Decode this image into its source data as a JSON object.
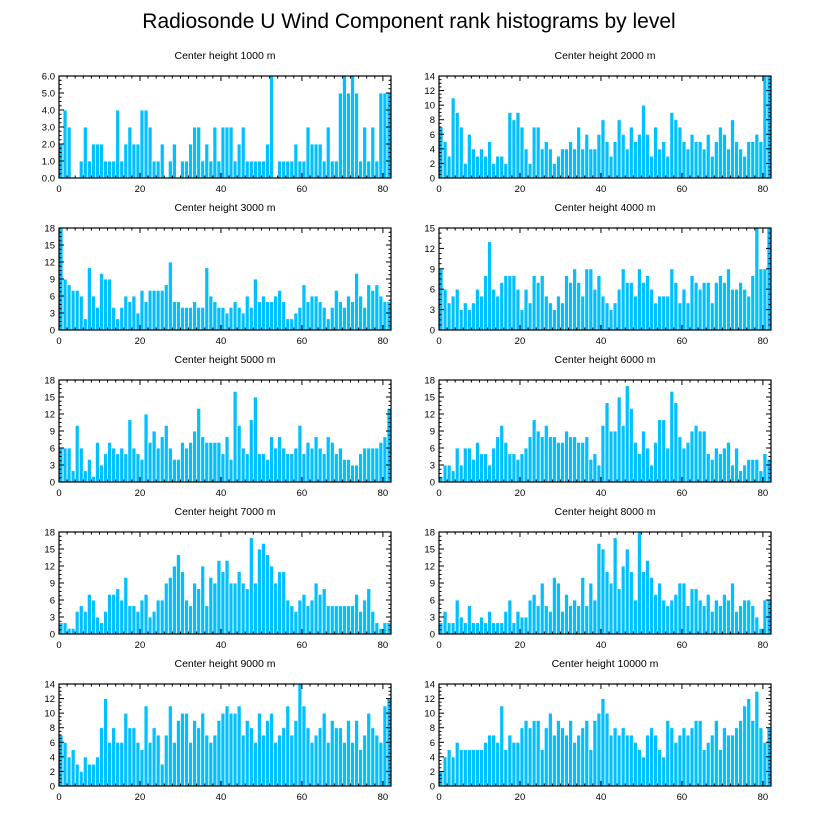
{
  "title": "Radiosonde U Wind Component rank histograms by level",
  "colors": {
    "bar": "#00c0ff",
    "bar_edge": "#ffffff",
    "axis": "#000000"
  },
  "chart_data": [
    {
      "type": "bar",
      "title": "Center height 1000 m",
      "xlim": [
        0,
        82
      ],
      "ylim": [
        0,
        6
      ],
      "xticks": [
        0,
        20,
        40,
        60,
        80
      ],
      "yticks": [
        0,
        1,
        2,
        3,
        4,
        5,
        6
      ],
      "ytick_labels": [
        "0.0",
        "1.0",
        "2.0",
        "3.0",
        "4.0",
        "5.0",
        "6.0"
      ],
      "values": [
        2,
        4,
        3,
        0,
        0,
        1,
        3,
        1,
        2,
        2,
        2,
        1,
        1,
        1,
        4,
        1,
        2,
        3,
        2,
        2,
        4,
        4,
        3,
        1,
        1,
        2,
        0,
        1,
        2,
        0,
        1,
        1,
        2,
        3,
        3,
        1,
        2,
        1,
        3,
        1,
        3,
        3,
        3,
        1,
        2,
        3,
        1,
        1,
        1,
        1,
        1,
        2,
        6,
        0,
        1,
        1,
        1,
        1,
        2,
        1,
        1,
        3,
        2,
        2,
        2,
        1,
        3,
        1,
        1,
        5,
        6,
        5,
        6,
        5,
        1,
        3,
        1,
        3,
        1,
        5,
        5,
        5
      ]
    },
    {
      "type": "bar",
      "title": "Center height 2000 m",
      "xlim": [
        0,
        82
      ],
      "ylim": [
        0,
        14
      ],
      "xticks": [
        0,
        20,
        40,
        60,
        80
      ],
      "yticks": [
        0,
        2,
        4,
        6,
        8,
        10,
        12,
        14
      ],
      "ytick_labels": [
        "0",
        "2",
        "4",
        "6",
        "8",
        "10",
        "12",
        "14"
      ],
      "values": [
        7,
        5,
        3,
        11,
        9,
        7,
        2,
        6,
        4,
        3,
        4,
        3,
        5,
        2,
        3,
        3,
        2,
        9,
        8,
        9,
        7,
        4,
        2,
        7,
        7,
        4,
        5,
        4,
        2,
        3,
        4,
        4,
        5,
        4,
        7,
        4,
        6,
        4,
        4,
        6,
        8,
        5,
        3,
        5,
        8,
        6,
        4,
        7,
        5,
        6,
        10,
        6,
        3,
        7,
        4,
        5,
        3,
        9,
        8,
        7,
        5,
        4,
        6,
        5,
        5,
        4,
        6,
        3,
        5,
        7,
        6,
        4,
        8,
        5,
        4,
        3,
        5,
        5,
        6,
        5,
        14,
        14
      ]
    },
    {
      "type": "bar",
      "title": "Center height 3000 m",
      "xlim": [
        0,
        82
      ],
      "ylim": [
        0,
        18
      ],
      "xticks": [
        0,
        20,
        40,
        60,
        80
      ],
      "yticks": [
        0,
        3,
        6,
        9,
        12,
        15,
        18
      ],
      "ytick_labels": [
        "0",
        "3",
        "6",
        "9",
        "12",
        "15",
        "18"
      ],
      "values": [
        18,
        9,
        8,
        7,
        7,
        6,
        2,
        11,
        6,
        4,
        10,
        9,
        9,
        4,
        2,
        4,
        6,
        5,
        6,
        3,
        7,
        5,
        7,
        7,
        7,
        7,
        8,
        12,
        5,
        5,
        4,
        4,
        4,
        5,
        4,
        4,
        11,
        6,
        5,
        4,
        4,
        3,
        4,
        5,
        4,
        3,
        6,
        4,
        9,
        5,
        6,
        5,
        5,
        6,
        7,
        5,
        2,
        2,
        3,
        4,
        8,
        5,
        6,
        6,
        5,
        4,
        2,
        4,
        7,
        5,
        4,
        6,
        5,
        10,
        6,
        4,
        8,
        7,
        8,
        6,
        5,
        5
      ]
    },
    {
      "type": "bar",
      "title": "Center height 4000 m",
      "xlim": [
        0,
        82
      ],
      "ylim": [
        0,
        15
      ],
      "xticks": [
        0,
        20,
        40,
        60,
        80
      ],
      "yticks": [
        0,
        3,
        6,
        9,
        12,
        15
      ],
      "ytick_labels": [
        "0",
        "3",
        "6",
        "9",
        "12",
        "15"
      ],
      "values": [
        9,
        6,
        4,
        5,
        6,
        3,
        4,
        3,
        4,
        6,
        5,
        8,
        13,
        6,
        5,
        7,
        8,
        8,
        8,
        6,
        3,
        6,
        4,
        8,
        7,
        8,
        5,
        4,
        3,
        5,
        4,
        8,
        7,
        9,
        7,
        5,
        9,
        9,
        6,
        8,
        5,
        4,
        3,
        4,
        6,
        9,
        7,
        7,
        5,
        9,
        7,
        8,
        6,
        4,
        5,
        5,
        5,
        9,
        7,
        4,
        6,
        4,
        8,
        7,
        6,
        7,
        7,
        4,
        7,
        8,
        7,
        9,
        6,
        6,
        7,
        6,
        5,
        8,
        15,
        9,
        9,
        15
      ]
    },
    {
      "type": "bar",
      "title": "Center height 5000 m",
      "xlim": [
        0,
        82
      ],
      "ylim": [
        0,
        18
      ],
      "xticks": [
        0,
        20,
        40,
        60,
        80
      ],
      "yticks": [
        0,
        3,
        6,
        9,
        12,
        15,
        18
      ],
      "ytick_labels": [
        "0",
        "3",
        "6",
        "9",
        "12",
        "15",
        "18"
      ],
      "values": [
        6,
        6,
        6,
        2,
        10,
        6,
        2,
        4,
        1,
        7,
        3,
        5,
        7,
        6,
        5,
        6,
        5,
        11,
        6,
        5,
        4,
        12,
        7,
        9,
        6,
        8,
        10,
        6,
        4,
        4,
        7,
        6,
        7,
        9,
        13,
        8,
        7,
        7,
        7,
        7,
        5,
        8,
        4,
        16,
        10,
        6,
        5,
        11,
        15,
        5,
        5,
        4,
        8,
        6,
        8,
        6,
        5,
        5,
        6,
        10,
        5,
        7,
        6,
        8,
        6,
        5,
        8,
        7,
        5,
        6,
        4,
        4,
        3,
        3,
        5,
        6,
        6,
        6,
        6,
        7,
        8,
        13
      ]
    },
    {
      "type": "bar",
      "title": "Center height 6000 m",
      "xlim": [
        0,
        82
      ],
      "ylim": [
        0,
        18
      ],
      "xticks": [
        0,
        20,
        40,
        60,
        80
      ],
      "yticks": [
        0,
        3,
        6,
        9,
        12,
        15,
        18
      ],
      "ytick_labels": [
        "0",
        "3",
        "6",
        "9",
        "12",
        "15",
        "18"
      ],
      "values": [
        1,
        3,
        3,
        2,
        6,
        3,
        6,
        6,
        4,
        7,
        5,
        5,
        3,
        6,
        8,
        10,
        7,
        5,
        5,
        4,
        5,
        6,
        8,
        11,
        9,
        8,
        10,
        8,
        8,
        7,
        7,
        9,
        8,
        8,
        7,
        7,
        8,
        4,
        5,
        3,
        10,
        14,
        9,
        9,
        15,
        10,
        17,
        13,
        7,
        5,
        9,
        6,
        3,
        7,
        11,
        11,
        6,
        16,
        14,
        8,
        6,
        7,
        9,
        10,
        9,
        9,
        5,
        4,
        6,
        5,
        6,
        7,
        3,
        6,
        2,
        3,
        4,
        4,
        4,
        2,
        5,
        4
      ]
    },
    {
      "type": "bar",
      "title": "Center height 7000 m",
      "xlim": [
        0,
        82
      ],
      "ylim": [
        0,
        18
      ],
      "xticks": [
        0,
        20,
        40,
        60,
        80
      ],
      "yticks": [
        0,
        3,
        6,
        9,
        12,
        15,
        18
      ],
      "ytick_labels": [
        "0",
        "3",
        "6",
        "9",
        "12",
        "15",
        "18"
      ],
      "values": [
        2,
        2,
        1,
        1,
        4,
        5,
        4,
        7,
        6,
        3,
        2,
        4,
        7,
        7,
        8,
        6,
        10,
        5,
        5,
        4,
        6,
        7,
        3,
        4,
        6,
        6,
        9,
        10,
        12,
        14,
        11,
        6,
        5,
        9,
        8,
        12,
        5,
        10,
        9,
        13,
        11,
        13,
        9,
        9,
        11,
        9,
        8,
        17,
        9,
        15,
        16,
        14,
        12,
        9,
        11,
        11,
        6,
        5,
        4,
        6,
        7,
        5,
        6,
        9,
        7,
        8,
        5,
        5,
        5,
        5,
        5,
        5,
        5,
        7,
        4,
        6,
        8,
        4,
        2,
        1,
        2,
        2
      ]
    },
    {
      "type": "bar",
      "title": "Center height 8000 m",
      "xlim": [
        0,
        82
      ],
      "ylim": [
        0,
        18
      ],
      "xticks": [
        0,
        20,
        40,
        60,
        80
      ],
      "yticks": [
        0,
        3,
        6,
        9,
        12,
        15,
        18
      ],
      "ytick_labels": [
        "0",
        "3",
        "6",
        "9",
        "12",
        "15",
        "18"
      ],
      "values": [
        2,
        4,
        2,
        2,
        6,
        3,
        2,
        5,
        2,
        2,
        3,
        2,
        4,
        2,
        2,
        2,
        4,
        6,
        2,
        4,
        3,
        3,
        6,
        7,
        5,
        9,
        5,
        4,
        10,
        9,
        4,
        7,
        5,
        6,
        5,
        10,
        5,
        9,
        6,
        16,
        15,
        11,
        9,
        17,
        8,
        12,
        15,
        11,
        6,
        18,
        11,
        13,
        10,
        7,
        9,
        6,
        5,
        6,
        7,
        9,
        9,
        5,
        8,
        8,
        6,
        5,
        7,
        4,
        6,
        5,
        7,
        6,
        9,
        4,
        5,
        6,
        6,
        5,
        3,
        1,
        6,
        6
      ]
    },
    {
      "type": "bar",
      "title": "Center height 9000 m",
      "xlim": [
        0,
        82
      ],
      "ylim": [
        0,
        14
      ],
      "xticks": [
        0,
        20,
        40,
        60,
        80
      ],
      "yticks": [
        0,
        2,
        4,
        6,
        8,
        10,
        12,
        14
      ],
      "ytick_labels": [
        "0",
        "2",
        "4",
        "6",
        "8",
        "10",
        "12",
        "14"
      ],
      "values": [
        7,
        6,
        4,
        5,
        3,
        2,
        4,
        3,
        3,
        4,
        8,
        12,
        6,
        8,
        6,
        6,
        10,
        8,
        8,
        6,
        5,
        11,
        6,
        8,
        7,
        3,
        7,
        11,
        6,
        9,
        10,
        10,
        6,
        9,
        8,
        10,
        7,
        6,
        7,
        9,
        10,
        11,
        10,
        10,
        11,
        7,
        9,
        8,
        6,
        10,
        7,
        9,
        10,
        6,
        7,
        8,
        11,
        7,
        9,
        14,
        11,
        8,
        6,
        7,
        8,
        10,
        6,
        9,
        8,
        8,
        6,
        9,
        6,
        9,
        5,
        7,
        10,
        8,
        7,
        6,
        11,
        12
      ]
    },
    {
      "type": "bar",
      "title": "Center height 10000 m",
      "xlim": [
        0,
        82
      ],
      "ylim": [
        0,
        14
      ],
      "xticks": [
        0,
        20,
        40,
        60,
        80
      ],
      "yticks": [
        0,
        2,
        4,
        6,
        8,
        10,
        12,
        14
      ],
      "ytick_labels": [
        "0",
        "2",
        "4",
        "6",
        "8",
        "10",
        "12",
        "14"
      ],
      "values": [
        2,
        4,
        5,
        4,
        6,
        5,
        5,
        5,
        5,
        5,
        5,
        6,
        7,
        7,
        6,
        11,
        5,
        7,
        6,
        6,
        8,
        9,
        8,
        9,
        9,
        5,
        8,
        10,
        7,
        9,
        8,
        7,
        9,
        6,
        7,
        8,
        9,
        5,
        9,
        10,
        12,
        10,
        7,
        8,
        7,
        8,
        7,
        7,
        6,
        5,
        4,
        7,
        8,
        7,
        5,
        4,
        9,
        8,
        6,
        7,
        8,
        7,
        8,
        9,
        9,
        5,
        6,
        7,
        9,
        5,
        8,
        7,
        7,
        8,
        9,
        11,
        12,
        9,
        13,
        8,
        6,
        8
      ]
    }
  ]
}
